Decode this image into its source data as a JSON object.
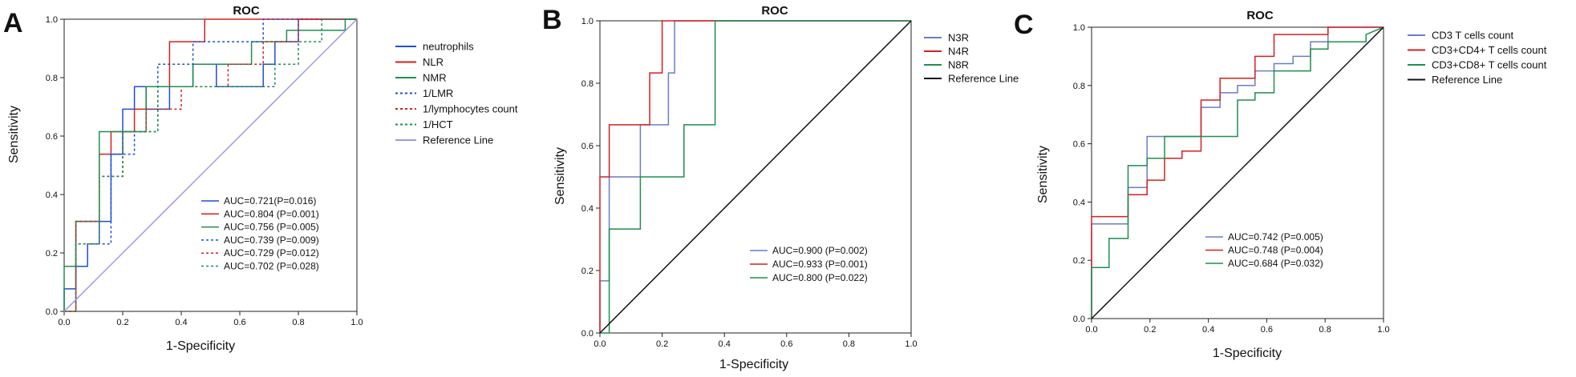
{
  "chart_data": [
    {
      "panel": "A",
      "type": "line",
      "title": "ROC",
      "xlabel": "1-Specificity",
      "ylabel": "Sensitivity",
      "xlim": [
        0,
        1.0
      ],
      "ylim": [
        0,
        1.0
      ],
      "xticks": [
        "0.0",
        "0.2",
        "0.4",
        "0.6",
        "0.8",
        "1.0"
      ],
      "yticks": [
        "0.0",
        "0.2",
        "0.4",
        "0.6",
        "0.8",
        "1.0"
      ],
      "legend_placement": "right",
      "series": [
        {
          "name": "neutrophils",
          "color": "#1f4fd6",
          "dash": "solid",
          "auc_label": "AUC=0.721(P=0.016)",
          "x": [
            0,
            0,
            0.04,
            0.04,
            0.08,
            0.08,
            0.12,
            0.12,
            0.16,
            0.16,
            0.2,
            0.2,
            0.24,
            0.24,
            0.28,
            0.28,
            0.36,
            0.36,
            0.44,
            0.44,
            0.52,
            0.52,
            0.6,
            0.6,
            0.68,
            0.68,
            0.72,
            0.72,
            0.8,
            0.8,
            0.84,
            0.84,
            1.0
          ],
          "y": [
            0,
            0.077,
            0.077,
            0.154,
            0.154,
            0.231,
            0.231,
            0.308,
            0.308,
            0.538,
            0.538,
            0.692,
            0.692,
            0.769,
            0.769,
            0.692,
            0.692,
            0.769,
            0.769,
            0.846,
            0.846,
            0.769,
            0.769,
            0.769,
            0.769,
            0.846,
            0.846,
            0.923,
            0.923,
            1.0,
            1.0,
            1.0,
            1.0
          ]
        },
        {
          "name": "NLR",
          "color": "#d42020",
          "dash": "solid",
          "auc_label": "AUC=0.804 (P=0.001)",
          "x": [
            0,
            0.04,
            0.04,
            0.12,
            0.12,
            0.16,
            0.16,
            0.24,
            0.24,
            0.28,
            0.28,
            0.36,
            0.36,
            0.48,
            0.48,
            0.92,
            0.92,
            1.0
          ],
          "y": [
            0,
            0,
            0.308,
            0.308,
            0.538,
            0.538,
            0.615,
            0.615,
            0.692,
            0.692,
            0.769,
            0.769,
            0.923,
            0.923,
            1.0,
            1.0,
            1.0,
            1.0
          ]
        },
        {
          "name": "NMR",
          "color": "#1f8f4f",
          "dash": "solid",
          "auc_label": "AUC=0.756 (P=0.005)",
          "x": [
            0,
            0,
            0.04,
            0.04,
            0.12,
            0.12,
            0.28,
            0.28,
            0.44,
            0.44,
            0.64,
            0.64,
            0.76,
            0.76,
            0.96,
            0.96,
            1.0
          ],
          "y": [
            0,
            0.154,
            0.154,
            0.308,
            0.308,
            0.615,
            0.615,
            0.769,
            0.769,
            0.846,
            0.846,
            0.923,
            0.923,
            0.962,
            0.962,
            1.0,
            1.0
          ]
        },
        {
          "name": "1/LMR",
          "color": "#1f4fd6",
          "dash": "dotted",
          "auc_label": "AUC=0.739 (P=0.009)",
          "x": [
            0,
            0.04,
            0.04,
            0.16,
            0.16,
            0.24,
            0.24,
            0.32,
            0.32,
            0.44,
            0.44,
            0.56,
            0.56,
            0.68,
            0.68,
            0.88,
            0.88,
            1.0
          ],
          "y": [
            0,
            0,
            0.231,
            0.231,
            0.538,
            0.538,
            0.615,
            0.615,
            0.846,
            0.846,
            0.923,
            0.923,
            0.923,
            0.923,
            1.0,
            1.0,
            1.0,
            1.0
          ]
        },
        {
          "name": "1/lymphocytes  count",
          "color": "#d42020",
          "dash": "dotted",
          "auc_label": "AUC=0.729 (P=0.012)",
          "x": [
            0,
            0.04,
            0.04,
            0.12,
            0.12,
            0.2,
            0.2,
            0.28,
            0.28,
            0.4,
            0.4,
            0.56,
            0.56,
            0.68,
            0.68,
            0.8,
            0.8,
            1.0
          ],
          "y": [
            0,
            0,
            0.308,
            0.308,
            0.462,
            0.462,
            0.615,
            0.615,
            0.692,
            0.692,
            0.769,
            0.769,
            0.846,
            0.846,
            0.923,
            0.923,
            1.0,
            1.0
          ]
        },
        {
          "name": "1/HCT",
          "color": "#1f8f4f",
          "dash": "dotted",
          "auc_label": "AUC=0.702 (P=0.028)",
          "x": [
            0,
            0.04,
            0.04,
            0.12,
            0.12,
            0.2,
            0.2,
            0.32,
            0.32,
            0.6,
            0.6,
            0.72,
            0.72,
            0.8,
            0.8,
            0.88,
            0.88,
            1.0
          ],
          "y": [
            0,
            0,
            0.231,
            0.231,
            0.462,
            0.462,
            0.615,
            0.615,
            0.769,
            0.769,
            0.769,
            0.769,
            0.846,
            0.846,
            0.923,
            0.923,
            1.0,
            1.0
          ]
        },
        {
          "name": "Reference Line",
          "color": "#9a9ae8",
          "dash": "solid",
          "x": [
            0,
            1.0
          ],
          "y": [
            0,
            1.0
          ]
        }
      ]
    },
    {
      "panel": "B",
      "type": "line",
      "title": "ROC",
      "xlabel": "1-Specificity",
      "ylabel": "Sensitivity",
      "xlim": [
        0,
        1.0
      ],
      "ylim": [
        0,
        1.0
      ],
      "xticks": [
        "0.0",
        "0.2",
        "0.4",
        "0.6",
        "0.8",
        "1.0"
      ],
      "yticks": [
        "0.0",
        "0.2",
        "0.4",
        "0.6",
        "0.8",
        "1.0"
      ],
      "legend_placement": "right",
      "series": [
        {
          "name": "N3R",
          "color": "#6b7cc9",
          "dash": "solid",
          "auc_label": "AUC=0.900 (P=0.002)",
          "x": [
            0,
            0,
            0.03,
            0.03,
            0.13,
            0.13,
            0.22,
            0.22,
            0.24,
            0.24,
            1.0
          ],
          "y": [
            0,
            0.167,
            0.167,
            0.5,
            0.5,
            0.667,
            0.667,
            0.833,
            0.833,
            1.0,
            1.0
          ]
        },
        {
          "name": "N4R",
          "color": "#d42020",
          "dash": "solid",
          "auc_label": "AUC=0.933 (P=0.001)",
          "x": [
            0,
            0,
            0.03,
            0.03,
            0.16,
            0.16,
            0.2,
            0.2,
            1.0
          ],
          "y": [
            0,
            0.5,
            0.5,
            0.667,
            0.667,
            0.833,
            0.833,
            1.0,
            1.0
          ]
        },
        {
          "name": "N8R",
          "color": "#1f8f4f",
          "dash": "solid",
          "auc_label": "AUC=0.800 (P=0.022)",
          "x": [
            0,
            0.03,
            0.03,
            0.13,
            0.13,
            0.27,
            0.27,
            0.37,
            0.37,
            1.0
          ],
          "y": [
            0,
            0,
            0.333,
            0.333,
            0.5,
            0.5,
            0.667,
            0.667,
            1.0,
            1.0
          ]
        },
        {
          "name": "Reference Line",
          "color": "#111111",
          "dash": "solid",
          "x": [
            0,
            1.0
          ],
          "y": [
            0,
            1.0
          ]
        }
      ]
    },
    {
      "panel": "C",
      "type": "line",
      "title": "ROC",
      "xlabel": "1-Specificity",
      "ylabel": "Sensitivity",
      "xlim": [
        0,
        1.0
      ],
      "ylim": [
        0,
        1.0
      ],
      "xticks": [
        "0.0",
        "0.2",
        "0.4",
        "0.6",
        "0.8",
        "1.0"
      ],
      "yticks": [
        "0.0",
        "0.2",
        "0.4",
        "0.6",
        "0.8",
        "1.0"
      ],
      "legend_placement": "right",
      "series": [
        {
          "name": "CD3 T cells count",
          "color": "#6b7cc9",
          "dash": "solid",
          "auc_label": "AUC=0.742 (P=0.005)",
          "x": [
            0,
            0,
            0.06,
            0.06,
            0.125,
            0.125,
            0.19,
            0.19,
            0.31,
            0.31,
            0.375,
            0.375,
            0.44,
            0.44,
            0.5,
            0.5,
            0.56,
            0.56,
            0.625,
            0.625,
            0.69,
            0.69,
            0.75,
            0.75,
            0.81,
            0.81,
            1.0
          ],
          "y": [
            0,
            0.325,
            0.325,
            0.325,
            0.325,
            0.45,
            0.45,
            0.625,
            0.625,
            0.625,
            0.625,
            0.725,
            0.725,
            0.775,
            0.775,
            0.8,
            0.8,
            0.85,
            0.85,
            0.875,
            0.875,
            0.9,
            0.9,
            0.95,
            0.95,
            1.0,
            1.0
          ]
        },
        {
          "name": "CD3+CD4+ T cells count",
          "color": "#d42020",
          "dash": "solid",
          "auc_label": "AUC=0.748 (P=0.004)",
          "x": [
            0,
            0,
            0.06,
            0.06,
            0.125,
            0.125,
            0.19,
            0.19,
            0.25,
            0.25,
            0.31,
            0.31,
            0.375,
            0.375,
            0.44,
            0.44,
            0.5,
            0.5,
            0.56,
            0.56,
            0.625,
            0.625,
            0.81,
            0.81,
            1.0
          ],
          "y": [
            0,
            0.35,
            0.35,
            0.35,
            0.35,
            0.425,
            0.425,
            0.475,
            0.475,
            0.55,
            0.55,
            0.575,
            0.575,
            0.75,
            0.75,
            0.825,
            0.825,
            0.825,
            0.825,
            0.9,
            0.9,
            0.975,
            0.975,
            1.0,
            1.0
          ]
        },
        {
          "name": "CD3+CD8+ T cells count",
          "color": "#1f8f4f",
          "dash": "solid",
          "auc_label": "AUC=0.684 (P=0.032)",
          "x": [
            0,
            0,
            0.06,
            0.06,
            0.125,
            0.125,
            0.19,
            0.19,
            0.25,
            0.25,
            0.5,
            0.5,
            0.56,
            0.56,
            0.625,
            0.625,
            0.75,
            0.75,
            0.81,
            0.81,
            0.94,
            0.94,
            1.0
          ],
          "y": [
            0,
            0.175,
            0.175,
            0.275,
            0.275,
            0.525,
            0.525,
            0.55,
            0.55,
            0.625,
            0.625,
            0.75,
            0.75,
            0.775,
            0.775,
            0.85,
            0.85,
            0.925,
            0.925,
            0.95,
            0.95,
            0.975,
            1.0
          ]
        },
        {
          "name": "Reference Line",
          "color": "#111111",
          "dash": "solid",
          "x": [
            0,
            1.0
          ],
          "y": [
            0,
            1.0
          ]
        }
      ]
    }
  ]
}
